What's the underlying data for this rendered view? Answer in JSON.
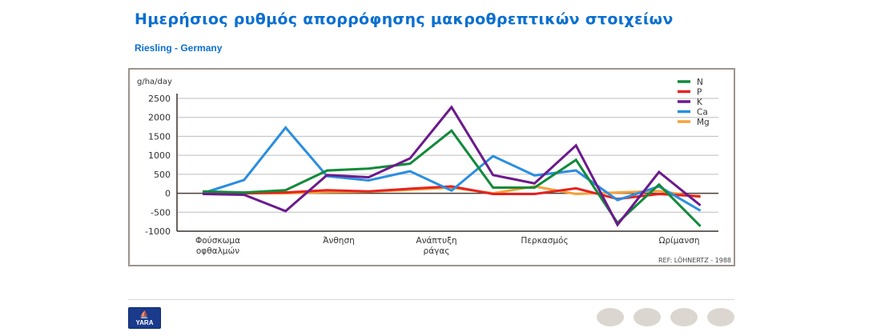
{
  "header": {
    "title": "Ημερήσιος ρυθμός απορρόφησης μακροθρεπτικών στοιχείων",
    "subtitle": "Riesling - Germany"
  },
  "chart_data": {
    "type": "line",
    "ylabel": "g/ha/day",
    "ylim": [
      -1000,
      2500
    ],
    "yticks": [
      2500,
      2000,
      1500,
      1000,
      500,
      0,
      -500,
      -1000
    ],
    "grid": true,
    "legend": "top-right",
    "categories": [
      "Φούσκωμα οφθαλμών",
      "Άνθηση",
      "Ανάπτυξη ράγας",
      "Περκασμός",
      "Ωρίμανση"
    ],
    "category_lines": [
      [
        "Φούσκωμα",
        "οφθαλμών"
      ],
      [
        "Άνθηση"
      ],
      [
        "Ανάπτυξη",
        "ράγας"
      ],
      [
        "Περκασμός"
      ],
      [
        "Ωρίμανση"
      ]
    ],
    "x": [
      1,
      2,
      3,
      4,
      5,
      6,
      7,
      8,
      9,
      10,
      11,
      12,
      13
    ],
    "series": [
      {
        "name": "N",
        "color": "#128a3a",
        "values": [
          50,
          20,
          80,
          600,
          650,
          780,
          1650,
          150,
          150,
          880,
          -780,
          230,
          -870
        ]
      },
      {
        "name": "P",
        "color": "#e4231f",
        "values": [
          0,
          0,
          20,
          80,
          50,
          120,
          180,
          -20,
          -20,
          130,
          -150,
          -20,
          -80
        ]
      },
      {
        "name": "K",
        "color": "#6c1a8c",
        "values": [
          -20,
          -40,
          -470,
          480,
          420,
          920,
          2270,
          480,
          260,
          1260,
          -830,
          560,
          -320
        ]
      },
      {
        "name": "Ca",
        "color": "#2a8ee0",
        "values": [
          0,
          350,
          1730,
          450,
          340,
          580,
          70,
          980,
          470,
          600,
          -180,
          180,
          -460
        ]
      },
      {
        "name": "Mg",
        "color": "#f5a23a",
        "values": [
          0,
          0,
          0,
          30,
          40,
          90,
          150,
          0,
          180,
          -20,
          20,
          60,
          -100
        ]
      }
    ],
    "annotation": "REF: LÖHNERTZ - 1988"
  },
  "footer": {
    "logo": "YARA",
    "dots": 4
  }
}
